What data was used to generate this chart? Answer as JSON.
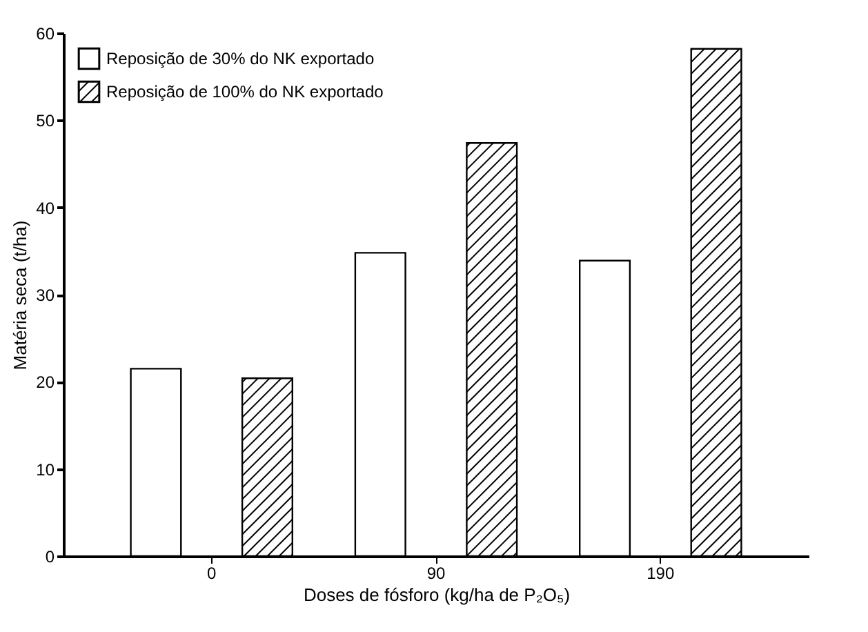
{
  "chart_data": {
    "type": "bar",
    "xlabel": "Doses de fósforo (kg/ha de P₂O₅)",
    "ylabel": "Matéria seca (t/ha)",
    "categories": [
      "0",
      "90",
      "190"
    ],
    "series": [
      {
        "name": "Reposição de 30% do NK exportado",
        "color": "#ffffff",
        "values": [
          21.5,
          34.8,
          33.9
        ]
      },
      {
        "name": "Reposição de 100% do NK exportado",
        "color": "#000000",
        "values": [
          20.4,
          47.4,
          58.2
        ]
      }
    ],
    "ylim": [
      0,
      60
    ],
    "yticks": [
      0,
      10,
      20,
      30,
      40,
      50,
      60
    ],
    "grid": false,
    "legend": "top left"
  }
}
